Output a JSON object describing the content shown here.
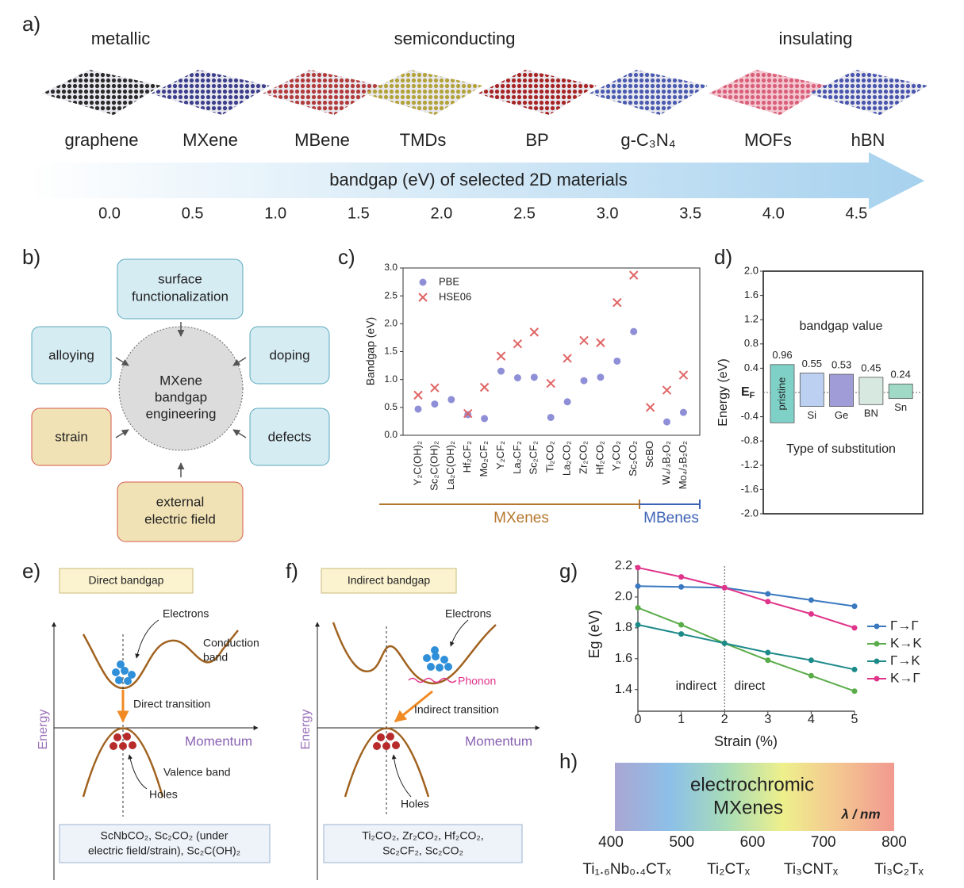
{
  "panel_labels": [
    "a)",
    "b)",
    "c)",
    "d)",
    "e)",
    "f)",
    "g)",
    "h)"
  ],
  "a": {
    "classes": [
      "metallic",
      "semiconducting",
      "insulating"
    ],
    "materials": [
      "graphene",
      "MXene",
      "MBene",
      "TMDs",
      "BP",
      "g-C₃N₄",
      "MOFs",
      "hBN"
    ],
    "arrow_label": "bandgap (eV) of selected 2D materials",
    "scale": [
      "0.0",
      "0.5",
      "1.0",
      "1.5",
      "2.0",
      "2.5",
      "3.0",
      "3.5",
      "4.0",
      "4.5"
    ]
  },
  "b": {
    "center": [
      "MXene",
      "bandgap",
      "engineering"
    ],
    "methods": [
      [
        "surface",
        "functionalization"
      ],
      [
        "alloying"
      ],
      [
        "doping"
      ],
      [
        "strain"
      ],
      [
        "defects"
      ],
      [
        "external",
        "electric field"
      ]
    ]
  },
  "e": {
    "title": "Direct bandgap",
    "electrons": "Electrons",
    "band_top": [
      "Conduction",
      "band"
    ],
    "transition": "Direct transition",
    "energy": "Energy",
    "momentum": "Momentum",
    "band_bottom": "Valence band",
    "holes": "Holes",
    "examples": [
      "ScNbCO₂, Sc₂CO₂ (under",
      "electric field/strain), Sc₂C(OH)₂"
    ]
  },
  "f": {
    "title": "Indirect bandgap",
    "electrons": "Electrons",
    "phonon": "Phonon",
    "transition": "Indirect transition",
    "energy": "Energy",
    "momentum": "Momentum",
    "holes": "Holes",
    "examples": [
      "Ti₂CO₂, Zr₂CO₂, Hf₂CO₂,",
      "Sc₂CF₂, Sc₂CO₂"
    ]
  },
  "h": {
    "title": [
      "electrochromic",
      "MXenes"
    ],
    "unit": "λ / nm",
    "xlim": [
      400,
      800
    ],
    "xticks": [
      400,
      500,
      600,
      700,
      800
    ],
    "materials": [
      "Ti₁.₆Nb₀.₄CTₓ",
      "Ti₂CTₓ",
      "Ti₃CNTₓ",
      "Ti₃C₂Tₓ"
    ]
  },
  "chart_data": [
    {
      "type": "scatter",
      "ylabel": "Bandgap (eV)",
      "categories": [
        "Y₂C(OH)₂",
        "Sc₂C(OH)₂",
        "La₂C(OH)₂",
        "Hf₂CF₂",
        "Mo₂CF₂",
        "Y₂CF₂",
        "La₂CF₂",
        "Sc₂CF₂",
        "Ti₂CO₂",
        "La₂CO₂",
        "Zr₂CO₂",
        "Hf₂CO₂",
        "Y₂CO₂",
        "Sc₂CO₂",
        "ScBO",
        "W₄/₃B₂O₂",
        "Mo₄/₃B₂O₂"
      ],
      "series": [
        {
          "name": "PBE",
          "color": "#8f8fd8",
          "marker": "circle",
          "values": [
            0.47,
            0.56,
            0.64,
            0.37,
            0.3,
            1.15,
            1.03,
            1.04,
            0.32,
            0.6,
            0.98,
            1.04,
            1.33,
            1.86,
            null,
            0.24,
            0.41
          ]
        },
        {
          "name": "HSE06",
          "color": "#e06464",
          "marker": "x",
          "values": [
            0.72,
            0.85,
            null,
            0.39,
            0.86,
            1.42,
            1.64,
            1.85,
            0.93,
            1.38,
            1.7,
            1.66,
            2.38,
            2.87,
            0.5,
            0.81,
            1.08
          ]
        }
      ],
      "ylim": [
        0,
        3
      ],
      "yticks": [
        {
          "value": 0,
          "label": "0.0"
        },
        {
          "value": 0.5,
          "label": "0.5"
        },
        {
          "value": 1,
          "label": "1.0"
        },
        {
          "value": 1.5,
          "label": "1.5"
        },
        {
          "value": 2,
          "label": "2.0"
        },
        {
          "value": 2.5,
          "label": "2.5"
        },
        {
          "value": 3,
          "label": "3.0"
        }
      ],
      "groups": [
        {
          "name": "MXenes",
          "color": "#b5772f"
        },
        {
          "name": "MBenes",
          "color": "#3d63b5"
        }
      ]
    },
    {
      "type": "bar",
      "ylabel": "Energy (eV)",
      "title": "bandgap value",
      "xlabel": "Type of substitution",
      "fermi": {
        "main": "E",
        "sub": "F"
      },
      "categories": [
        "pristine",
        "Si",
        "Ge",
        "BN",
        "Sn"
      ],
      "values": [
        0.96,
        0.55,
        0.53,
        0.45,
        0.24
      ],
      "bottoms": [
        -0.5,
        -0.23,
        -0.23,
        -0.2,
        -0.1
      ],
      "colors": [
        "#7fd1c8",
        "#bcd0f2",
        "#a09cd8",
        "#d6e8e0",
        "#a0d9c6"
      ],
      "ylim": [
        -2,
        2
      ],
      "yticks": [
        {
          "value": -2,
          "label": "-2.0"
        },
        {
          "value": -1.6,
          "label": "-1.6"
        },
        {
          "value": -1.2,
          "label": "-1.2"
        },
        {
          "value": -0.8,
          "label": "-0.8"
        },
        {
          "value": -0.4,
          "label": "-0.4"
        },
        {
          "value": 0.4,
          "label": "0.4"
        },
        {
          "value": 0.8,
          "label": "0.8"
        },
        {
          "value": 1.2,
          "label": "1.2"
        },
        {
          "value": 1.6,
          "label": "1.6"
        },
        {
          "value": 2,
          "label": "2.0"
        }
      ]
    },
    {
      "type": "line",
      "xlabel": "Strain (%)",
      "ylabel": "Eg (eV)",
      "x": [
        0,
        1,
        2,
        3,
        4,
        5
      ],
      "xlim": [
        0,
        5
      ],
      "xticks": [
        0,
        1,
        2,
        3,
        4,
        5
      ],
      "ylim": [
        1.26,
        2.2
      ],
      "yticks": [
        1.4,
        1.6,
        1.8,
        {
          "value": 2,
          "label": "2.0"
        },
        2.2
      ],
      "divider": 2,
      "annotations": [
        "indirect",
        "direct"
      ],
      "series": [
        {
          "name": "Γ→Γ",
          "color": "#3a78c0",
          "values": [
            2.07,
            2.065,
            2.06,
            2.02,
            1.98,
            1.94
          ]
        },
        {
          "name": "K→K",
          "color": "#5aac4a",
          "values": [
            1.93,
            1.82,
            1.7,
            1.59,
            1.49,
            1.39
          ]
        },
        {
          "name": "Γ→K",
          "color": "#1d8a8a",
          "values": [
            1.82,
            1.76,
            1.7,
            1.64,
            1.59,
            1.53
          ]
        },
        {
          "name": "K→Γ",
          "color": "#e0338a",
          "values": [
            2.19,
            2.13,
            2.06,
            1.97,
            1.89,
            1.8
          ]
        }
      ]
    }
  ]
}
